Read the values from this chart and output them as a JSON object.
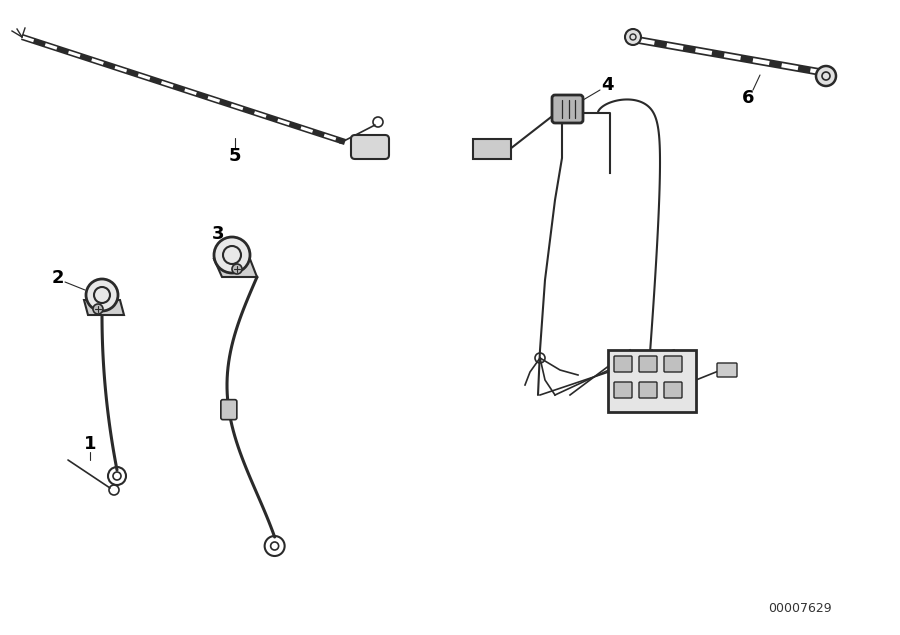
{
  "bg_color": "#ffffff",
  "line_color": "#2a2a2a",
  "label_color": "#000000",
  "part_id": "00007629",
  "figsize": [
    9.0,
    6.35
  ],
  "dpi": 100
}
